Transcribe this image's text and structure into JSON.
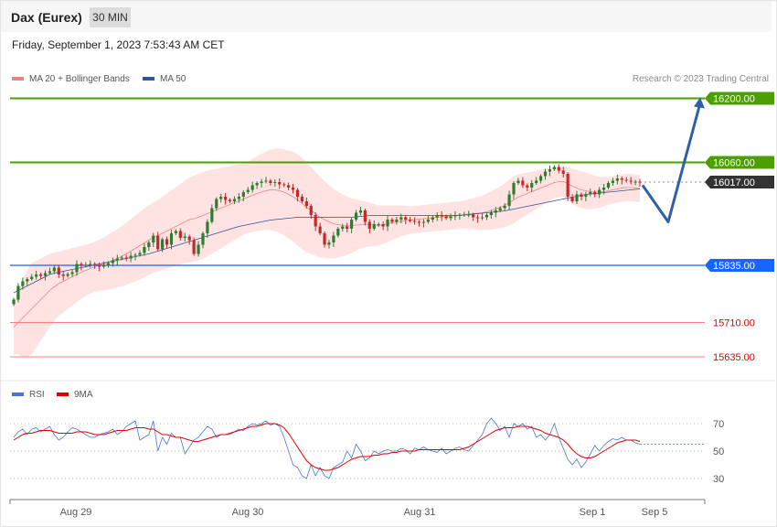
{
  "header": {
    "title": "Dax (Eurex)",
    "interval": "30 MIN"
  },
  "timestamp": "Friday, September 1, 2023 7:53:43 AM CET",
  "credit": "Research © 2023 Trading Central",
  "legend_main": [
    {
      "label": "MA 20 + Bollinger Bands",
      "color": "#f08080"
    },
    {
      "label": "MA 50",
      "color": "#2f5597"
    }
  ],
  "legend_rsi": [
    {
      "label": "RSI",
      "color": "#4a74d9"
    },
    {
      "label": "9MA",
      "color": "#e00000"
    }
  ],
  "colors": {
    "up": "#2e7d32",
    "down": "#c62828",
    "resistance": "#4d9e00",
    "support": "#1565ff",
    "target": "#ff8080",
    "last": "#333333",
    "arrow": "#2f5fa7"
  },
  "chart_data": {
    "type": "candlestick",
    "y_range": [
      15595,
      16215
    ],
    "x_tick_labels": [
      "Aug 29",
      "Aug 30",
      "Aug 31",
      "Sep 1",
      "Sep 5"
    ],
    "levels": [
      {
        "label": "16200.00",
        "value": 16200,
        "kind": "resistance"
      },
      {
        "label": "16060.00",
        "value": 16060,
        "kind": "resistance"
      },
      {
        "label": "16017.00",
        "value": 16017,
        "kind": "last"
      },
      {
        "label": "15835.00",
        "value": 15835,
        "kind": "support"
      },
      {
        "label": "15710.00",
        "value": 15710,
        "kind": "target"
      },
      {
        "label": "15635.00",
        "value": 15635,
        "kind": "target"
      }
    ],
    "forecast_path": [
      16010,
      15930,
      16190
    ],
    "closes": [
      15760,
      15790,
      15800,
      15805,
      15810,
      15815,
      15812,
      15818,
      15822,
      15830,
      15815,
      15812,
      15816,
      15820,
      15838,
      15834,
      15836,
      15838,
      15835,
      15832,
      15836,
      15840,
      15846,
      15850,
      15852,
      15850,
      15856,
      15858,
      15862,
      15875,
      15885,
      15900,
      15870,
      15892,
      15880,
      15905,
      15910,
      15895,
      15898,
      15890,
      15860,
      15880,
      15905,
      15930,
      15960,
      15980,
      15985,
      15978,
      15975,
      15980,
      15985,
      15995,
      16000,
      16010,
      16015,
      16018,
      16020,
      16015,
      16017,
      16012,
      16010,
      16005,
      16000,
      15985,
      15975,
      15965,
      15945,
      15920,
      15905,
      15880,
      15885,
      15900,
      15915,
      15920,
      15915,
      15935,
      15950,
      15955,
      15930,
      15915,
      15925,
      15925,
      15920,
      15935,
      15930,
      15935,
      15940,
      15935,
      15932,
      15930,
      15928,
      15930,
      15935,
      15940,
      15945,
      15942,
      15938,
      15942,
      15945,
      15945,
      15946,
      15946,
      15940,
      15938,
      15940,
      15945,
      15950,
      15955,
      15960,
      15965,
      15990,
      16015,
      16020,
      16010,
      16005,
      16015,
      16020,
      16030,
      16040,
      16045,
      16050,
      16042,
      16035,
      15985,
      15975,
      15990,
      15985,
      15990,
      15995,
      15990,
      16000,
      16005,
      16015,
      16020,
      16025,
      16022,
      16020,
      16018,
      16018,
      16017
    ],
    "ma20": [
      15700,
      15710,
      15720,
      15730,
      15740,
      15750,
      15760,
      15770,
      15780,
      15788,
      15795,
      15800,
      15805,
      15810,
      15815,
      15820,
      15824,
      15828,
      15832,
      15835,
      15838,
      15842,
      15846,
      15850,
      15855,
      15860,
      15866,
      15872,
      15878,
      15884,
      15890,
      15896,
      15900,
      15905,
      15910,
      15915,
      15920,
      15925,
      15930,
      15935,
      15937,
      15940,
      15944,
      15948,
      15952,
      15956,
      15960,
      15964,
      15968,
      15972,
      15976,
      15980,
      15984,
      15988,
      15992,
      15995,
      15998,
      16000,
      16000,
      15998,
      15995,
      15990,
      15985,
      15978,
      15970,
      15962,
      15955,
      15948,
      15940,
      15935,
      15930,
      15926,
      15924,
      15922,
      15921,
      15922,
      15923,
      15924,
      15925,
      15924,
      15923,
      15922,
      15924,
      15926,
      15928,
      15930,
      15932,
      15933,
      15934,
      15935,
      15936,
      15937,
      15938,
      15939,
      15940,
      15941,
      15942,
      15943,
      15944,
      15945,
      15946,
      15947,
      15948,
      15949,
      15950,
      15952,
      15955,
      15958,
      15962,
      15966,
      15972,
      15978,
      15984,
      15988,
      15992,
      15996,
      16000,
      16004,
      16008,
      16012,
      16016,
      16018,
      16018,
      16014,
      16008,
      16004,
      16000,
      15998,
      15996,
      15995,
      15995,
      15996,
      15998,
      16000,
      16002,
      16004,
      16005,
      16005,
      16004,
      16003
    ],
    "bb_width": [
      60,
      70,
      85,
      95,
      100,
      95,
      90,
      85,
      80,
      75,
      70,
      68,
      65,
      63,
      60,
      58,
      56,
      55,
      55,
      56,
      58,
      60,
      62,
      64,
      66,
      68,
      70,
      72,
      74,
      75,
      76,
      77,
      78,
      80,
      82,
      84,
      86,
      88,
      90,
      92,
      94,
      95,
      95,
      94,
      92,
      90,
      88,
      86,
      84,
      82,
      80,
      78,
      78,
      80,
      82,
      84,
      86,
      88,
      90,
      92,
      94,
      96,
      98,
      100,
      100,
      98,
      95,
      92,
      88,
      84,
      80,
      76,
      72,
      68,
      64,
      60,
      56,
      52,
      50,
      48,
      46,
      44,
      42,
      40,
      38,
      36,
      34,
      32,
      30,
      30,
      30,
      30,
      30,
      30,
      30,
      30,
      30,
      30,
      30,
      30,
      30,
      32,
      34,
      36,
      38,
      40,
      42,
      44,
      46,
      48,
      50,
      52,
      50,
      48,
      46,
      44,
      42,
      40,
      38,
      36,
      34,
      34,
      34,
      36,
      38,
      40,
      40,
      40,
      38,
      36,
      34,
      32,
      30,
      30,
      30,
      30,
      30,
      30,
      30,
      30
    ],
    "ma50": [
      15775,
      15780,
      15785,
      15790,
      15795,
      15800,
      15805,
      15810,
      15815,
      15818,
      15820,
      15822,
      15824,
      15826,
      15828,
      15830,
      15832,
      15834,
      15836,
      15838,
      15840,
      15842,
      15844,
      15846,
      15848,
      15850,
      15852,
      15854,
      15856,
      15858,
      15860,
      15863,
      15866,
      15869,
      15872,
      15875,
      15878,
      15881,
      15884,
      15887,
      15890,
      15893,
      15896,
      15899,
      15902,
      15905,
      15908,
      15911,
      15914,
      15917,
      15920,
      15922,
      15924,
      15926,
      15928,
      15930,
      15932,
      15934,
      15935,
      15936,
      15937,
      15938,
      15939,
      15940,
      15940,
      15940,
      15940,
      15940,
      15940,
      15940,
      15940,
      15940,
      15940,
      15940,
      15940,
      15940,
      15941,
      15942,
      15943,
      15944,
      15944,
      15944,
      15944,
      15944,
      15944,
      15944,
      15944,
      15944,
      15944,
      15944,
      15944,
      15944,
      15944,
      15944,
      15944,
      15944,
      15944,
      15944,
      15944,
      15944,
      15945,
      15946,
      15947,
      15948,
      15949,
      15950,
      15951,
      15952,
      15953,
      15954,
      15956,
      15958,
      15960,
      15962,
      15964,
      15966,
      15968,
      15970,
      15972,
      15974,
      15976,
      15978,
      15980,
      15982,
      15984,
      15986,
      15988,
      15990,
      15991,
      15992,
      15993,
      15994,
      15995,
      15996,
      15997,
      15998,
      15999,
      16000,
      16001,
      16002
    ],
    "rsi_y_range": [
      20,
      80
    ],
    "rsi_levels": [
      70,
      50,
      30
    ],
    "rsi": [
      60,
      64,
      66,
      62,
      66,
      67,
      64,
      66,
      68,
      62,
      58,
      60,
      64,
      67,
      66,
      64,
      62,
      60,
      60,
      62,
      63,
      64,
      66,
      62,
      64,
      68,
      70,
      72,
      58,
      60,
      62,
      72,
      50,
      60,
      55,
      63,
      60,
      60,
      48,
      53,
      58,
      60,
      64,
      68,
      66,
      60,
      62,
      62,
      62,
      64,
      66,
      65,
      68,
      70,
      69,
      70,
      72,
      69,
      70,
      68,
      60,
      50,
      40,
      38,
      32,
      30,
      40,
      32,
      38,
      32,
      30,
      38,
      40,
      42,
      50,
      45,
      55,
      50,
      43,
      45,
      50,
      48,
      50,
      51,
      50,
      50,
      52,
      51,
      48,
      52,
      51,
      53,
      51,
      50,
      49,
      52,
      48,
      50,
      52,
      53,
      51,
      50,
      54,
      58,
      62,
      70,
      74,
      70,
      65,
      68,
      60,
      70,
      68,
      70,
      66,
      68,
      60,
      62,
      58,
      62,
      70,
      60,
      52,
      44,
      40,
      44,
      38,
      42,
      48,
      54,
      50,
      54,
      57,
      59,
      58,
      60,
      58,
      58,
      56,
      55
    ],
    "rsi9": [
      58,
      60,
      62,
      63,
      63,
      64,
      65,
      65,
      65,
      64,
      63,
      63,
      63,
      63,
      64,
      64,
      64,
      63,
      62,
      62,
      62,
      63,
      64,
      65,
      65,
      65,
      66,
      67,
      67,
      67,
      66,
      66,
      64,
      62,
      62,
      61,
      60,
      60,
      59,
      58,
      57,
      57,
      58,
      59,
      60,
      61,
      62,
      62,
      63,
      64,
      65,
      66,
      67,
      68,
      68,
      69,
      70,
      70,
      70,
      69,
      67,
      63,
      58,
      53,
      48,
      43,
      40,
      38,
      37,
      36,
      36,
      37,
      38,
      40,
      42,
      44,
      45,
      46,
      46,
      46,
      47,
      47,
      48,
      48,
      49,
      49,
      50,
      50,
      50,
      50,
      51,
      51,
      51,
      51,
      51,
      51,
      51,
      51,
      51,
      51,
      52,
      53,
      55,
      57,
      59,
      61,
      63,
      65,
      66,
      67,
      67,
      67,
      68,
      68,
      68,
      67,
      66,
      65,
      63,
      62,
      61,
      60,
      58,
      55,
      51,
      48,
      46,
      45,
      45,
      46,
      48,
      50,
      52,
      54,
      56,
      57,
      58,
      58,
      58,
      57
    ]
  }
}
